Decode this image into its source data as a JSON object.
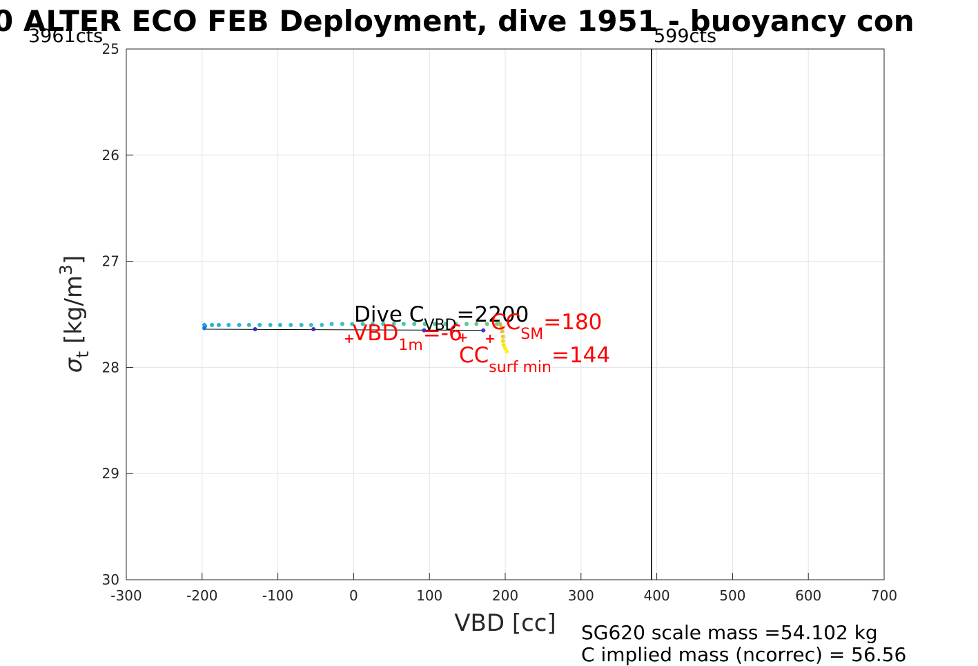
{
  "chart_data": {
    "type": "scatter",
    "title": "0 ALTER ECO FEB Deployment, dive 1951 - buoyancy con",
    "xlabel": "VBD [cc]",
    "ylabel": "σ_t [kg/m^3]",
    "xlim": [
      -300,
      700
    ],
    "ylim": [
      25,
      30
    ],
    "y_reversed": true,
    "grid": true,
    "x_ticks": [
      "-300",
      "-200",
      "-100",
      "0",
      "100",
      "200",
      "300",
      "400",
      "500",
      "600",
      "700"
    ],
    "y_ticks": [
      "25",
      "26",
      "27",
      "28",
      "29",
      "30"
    ],
    "counts_left": "3961cts",
    "counts_right": "599cts",
    "vertical_line_x": 393,
    "fit_line": {
      "x": [
        -197,
        174
      ],
      "y": [
        27.64,
        27.65
      ]
    },
    "series": [
      {
        "points": [
          {
            "x": -197,
            "y": 27.6,
            "color": "#1aa9e0"
          },
          {
            "x": -196,
            "y": 27.61,
            "color": "#1aa9e0"
          },
          {
            "x": -187,
            "y": 27.6,
            "color": "#22b0dd"
          },
          {
            "x": -178,
            "y": 27.6,
            "color": "#22b0dd"
          },
          {
            "x": -165,
            "y": 27.6,
            "color": "#26b4da"
          },
          {
            "x": -151,
            "y": 27.6,
            "color": "#26b4da"
          },
          {
            "x": -138,
            "y": 27.6,
            "color": "#2ab8d6"
          },
          {
            "x": -124,
            "y": 27.6,
            "color": "#2ab8d6"
          },
          {
            "x": -110,
            "y": 27.6,
            "color": "#2dbbd2"
          },
          {
            "x": -97,
            "y": 27.6,
            "color": "#2dbbd2"
          },
          {
            "x": -83,
            "y": 27.6,
            "color": "#30bdcd"
          },
          {
            "x": -69,
            "y": 27.6,
            "color": "#30bdcd"
          },
          {
            "x": -56,
            "y": 27.6,
            "color": "#33bfc8"
          },
          {
            "x": -42,
            "y": 27.6,
            "color": "#33bfc8"
          },
          {
            "x": -29,
            "y": 27.59,
            "color": "#36c1c3"
          },
          {
            "x": -15,
            "y": 27.59,
            "color": "#36c1c3"
          },
          {
            "x": -2,
            "y": 27.59,
            "color": "#3ac3bd"
          },
          {
            "x": 12,
            "y": 27.59,
            "color": "#3ac3bd"
          },
          {
            "x": 25,
            "y": 27.59,
            "color": "#3fc5b6"
          },
          {
            "x": 39,
            "y": 27.59,
            "color": "#3fc5b6"
          },
          {
            "x": 53,
            "y": 27.59,
            "color": "#44c7ae"
          },
          {
            "x": 66,
            "y": 27.59,
            "color": "#44c7ae"
          },
          {
            "x": 80,
            "y": 27.59,
            "color": "#4ac8a6"
          },
          {
            "x": 94,
            "y": 27.59,
            "color": "#4ac8a6"
          },
          {
            "x": 107,
            "y": 27.59,
            "color": "#52c99d"
          },
          {
            "x": 121,
            "y": 27.59,
            "color": "#52c99d"
          },
          {
            "x": 135,
            "y": 27.59,
            "color": "#5bca93"
          },
          {
            "x": 149,
            "y": 27.59,
            "color": "#5bca93"
          },
          {
            "x": 162,
            "y": 27.59,
            "color": "#66ca89"
          },
          {
            "x": 176,
            "y": 27.59,
            "color": "#72c97f"
          },
          {
            "x": 189,
            "y": 27.59,
            "color": "#7fc875"
          },
          {
            "x": 193,
            "y": 27.59,
            "color": "#9bc663"
          },
          {
            "x": -197,
            "y": 27.63,
            "color": "#1f6fe0"
          },
          {
            "x": -130,
            "y": 27.64,
            "color": "#3a2cc0"
          },
          {
            "x": -53,
            "y": 27.64,
            "color": "#3d2eb8"
          },
          {
            "x": 93,
            "y": 27.65,
            "color": "#4330c8"
          },
          {
            "x": 171,
            "y": 27.65,
            "color": "#4335d0"
          },
          {
            "x": 195,
            "y": 27.62,
            "color": "#d9bf3a"
          },
          {
            "x": 196,
            "y": 27.66,
            "color": "#e6c52f"
          },
          {
            "x": 197,
            "y": 27.71,
            "color": "#f0cc26"
          },
          {
            "x": 197,
            "y": 27.75,
            "color": "#f6d81e"
          },
          {
            "x": 198,
            "y": 27.79,
            "color": "#fbe418"
          },
          {
            "x": 200,
            "y": 27.82,
            "color": "#fdee17"
          },
          {
            "x": 202,
            "y": 27.85,
            "color": "#fef51a"
          }
        ]
      }
    ],
    "plus_markers": [
      {
        "x": -6,
        "y": 27.73,
        "color": "#ff0000"
      },
      {
        "x": 144,
        "y": 27.72,
        "color": "#ff0000"
      },
      {
        "x": 180,
        "y": 27.73,
        "color": "#ff0000"
      }
    ],
    "annotations": {
      "dive_c_main": "Dive C",
      "dive_c_sub": "VBD",
      "dive_c_value": "=2200",
      "vbd1m_main": "VBD",
      "vbd1m_sub": "1m",
      "vbd1m_value": "=-6",
      "ccsm_main": "CC",
      "ccsm_sub": "SM",
      "ccsm_value": "=180",
      "ccsurf_main": "CC",
      "ccsurf_sub": "surf min",
      "ccsurf_value": "=144"
    },
    "footer": {
      "line1": "SG620 scale mass =54.102 kg",
      "line2": "C",
      "line2_rest": " implied mass (ncorrec) = 56.56"
    }
  }
}
